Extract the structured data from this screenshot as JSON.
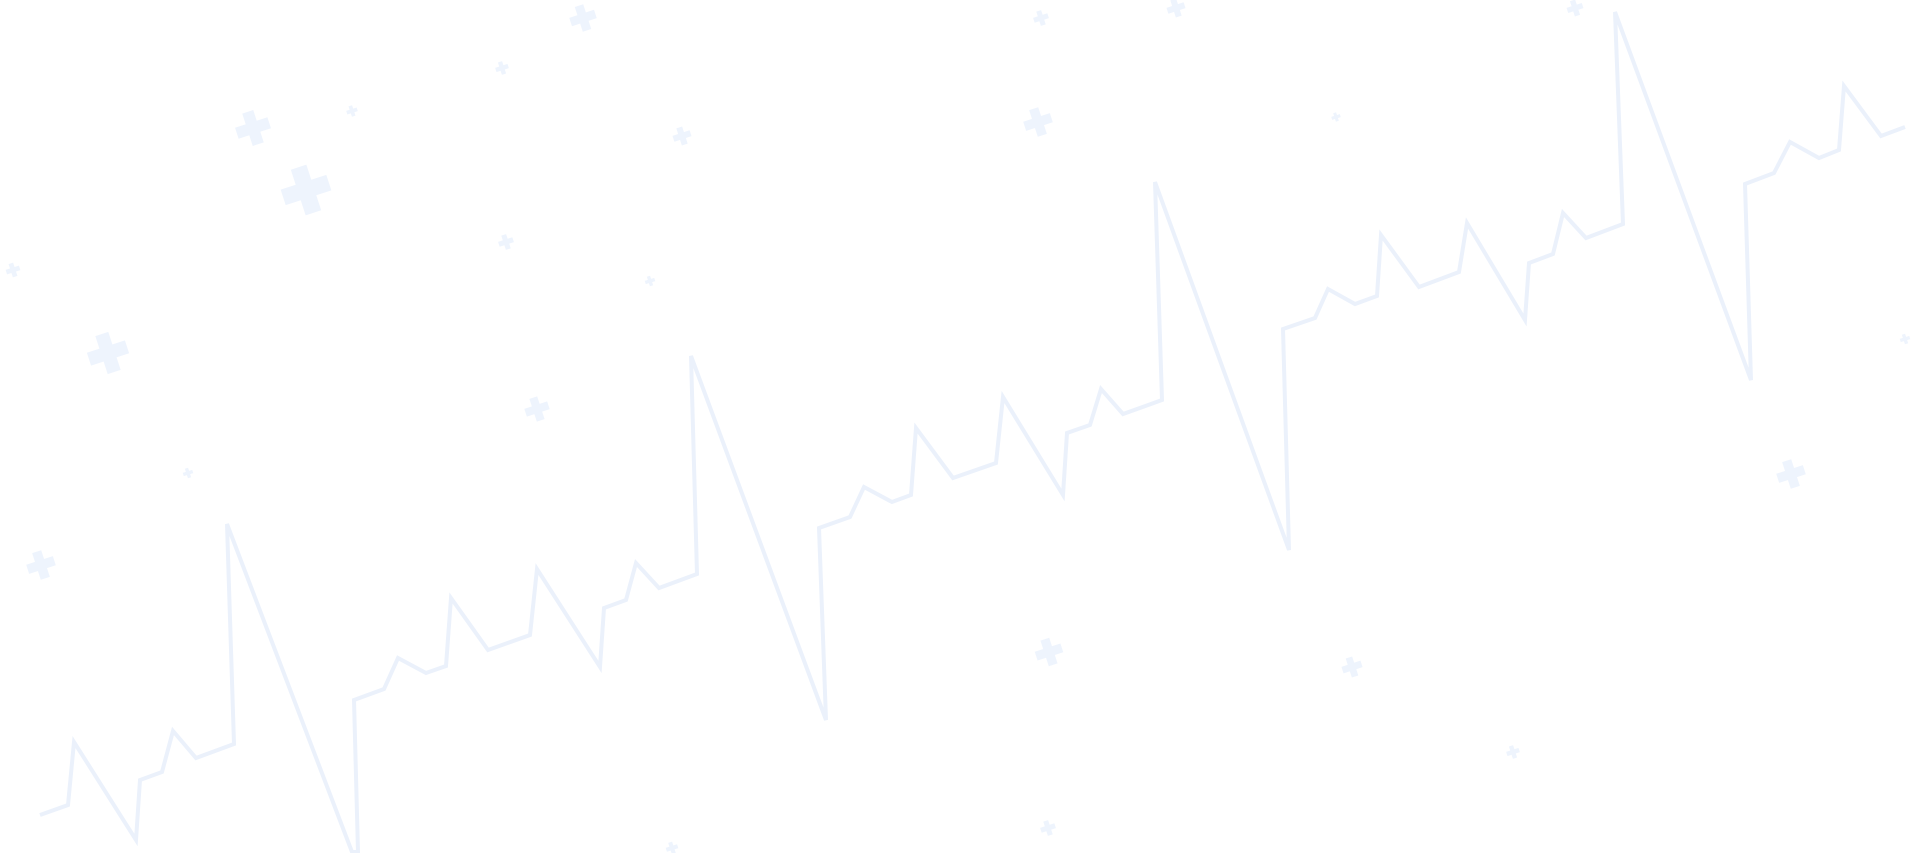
{
  "background": {
    "color": "#ffffff",
    "pattern_color": "#eef4fd",
    "ecg_line_color": "#ebf1fb"
  },
  "icons": {
    "ecg_line": "heartbeat-line-icon",
    "cross": "medical-cross-icon"
  }
}
